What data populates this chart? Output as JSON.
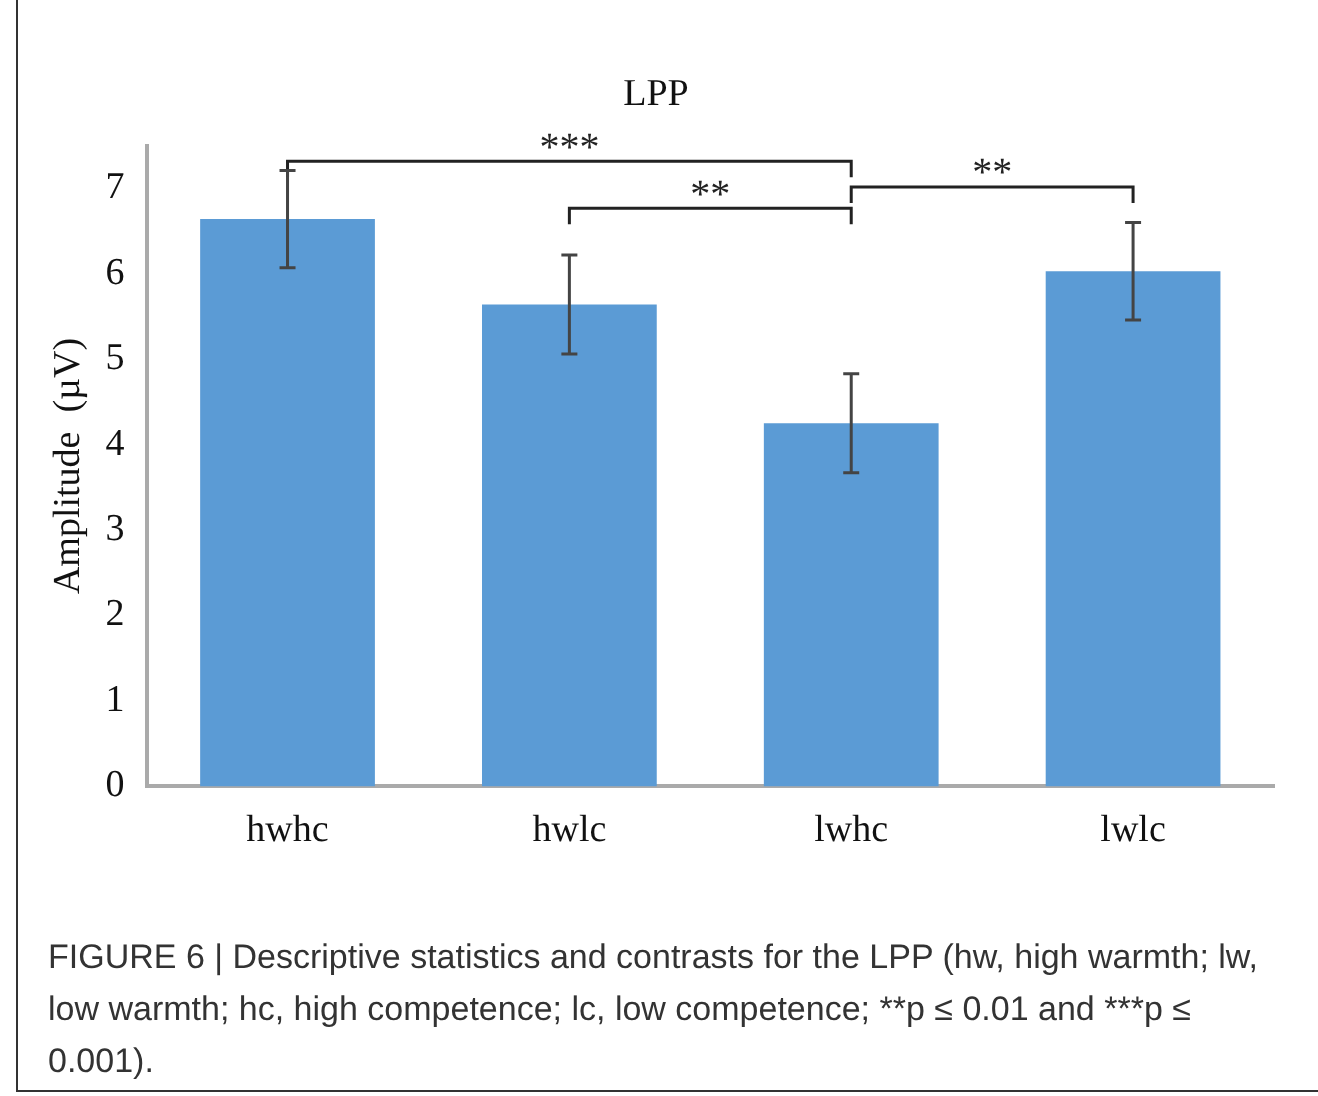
{
  "chart_data": {
    "type": "bar",
    "title": "LPP",
    "ylabel": "Amplitude  (µV)",
    "categories": [
      "hwhc",
      "hwlc",
      "lwhc",
      "lwlc"
    ],
    "values": [
      6.64,
      5.64,
      4.25,
      6.03
    ],
    "errors": [
      0.57,
      0.58,
      0.58,
      0.57
    ],
    "color": "#5b9bd5",
    "ylim": [
      0,
      7.5
    ],
    "yticks": [
      0,
      1,
      2,
      3,
      4,
      5,
      6,
      7
    ],
    "grid": false,
    "legend": false,
    "annotations": [
      "***",
      "**",
      "**",
      "FIGURE 6 | Descriptive statistics and contrasts for the LPP (hw, high warmth; lw, low warmth; hc, high competence; lc, low competence; **p ≤ 0.01 and ***p ≤ 0.001)."
    ]
  }
}
